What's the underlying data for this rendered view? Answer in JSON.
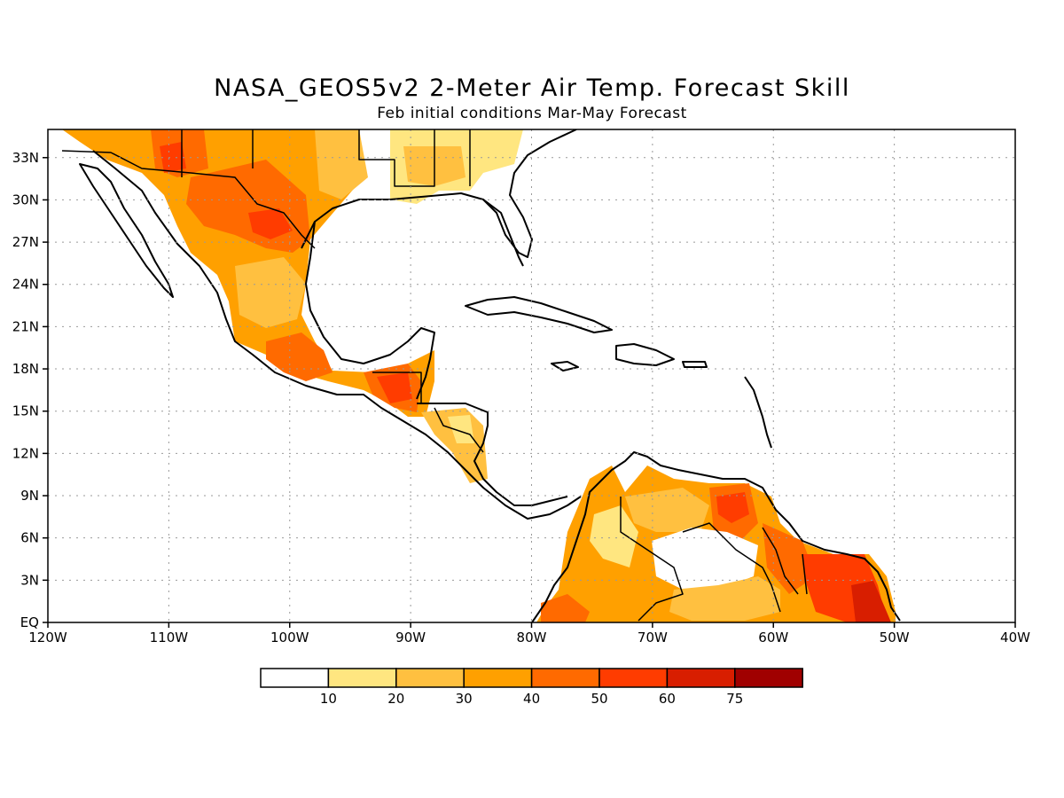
{
  "title": "NASA_GEOS5v2 2-Meter Air Temp. Forecast Skill",
  "subtitle": "Feb initial conditions  Mar-May Forecast",
  "map": {
    "lon_range": [
      -120,
      -40
    ],
    "lat_range": [
      0,
      35
    ],
    "x_ticks": [
      "120W",
      "110W",
      "100W",
      "90W",
      "80W",
      "70W",
      "60W",
      "50W",
      "40W"
    ],
    "y_ticks": [
      "EQ",
      "3N",
      "6N",
      "9N",
      "12N",
      "15N",
      "18N",
      "21N",
      "24N",
      "27N",
      "30N",
      "33N"
    ],
    "grid": "dotted"
  },
  "legend": {
    "labels": [
      "10",
      "20",
      "30",
      "40",
      "50",
      "60",
      "75"
    ],
    "colors": [
      "#ffffff",
      "#ffe680",
      "#ffc040",
      "#ffa000",
      "#ff6a00",
      "#ff3c00",
      "#d81e00",
      "#a00000"
    ]
  },
  "colors": {
    "skill_10_20": "#ffe680",
    "skill_20_30": "#ffc040",
    "skill_30_40": "#ffa000",
    "skill_40_50": "#ff6a00",
    "skill_50_60": "#ff3c00",
    "skill_60_75": "#d81e00"
  }
}
